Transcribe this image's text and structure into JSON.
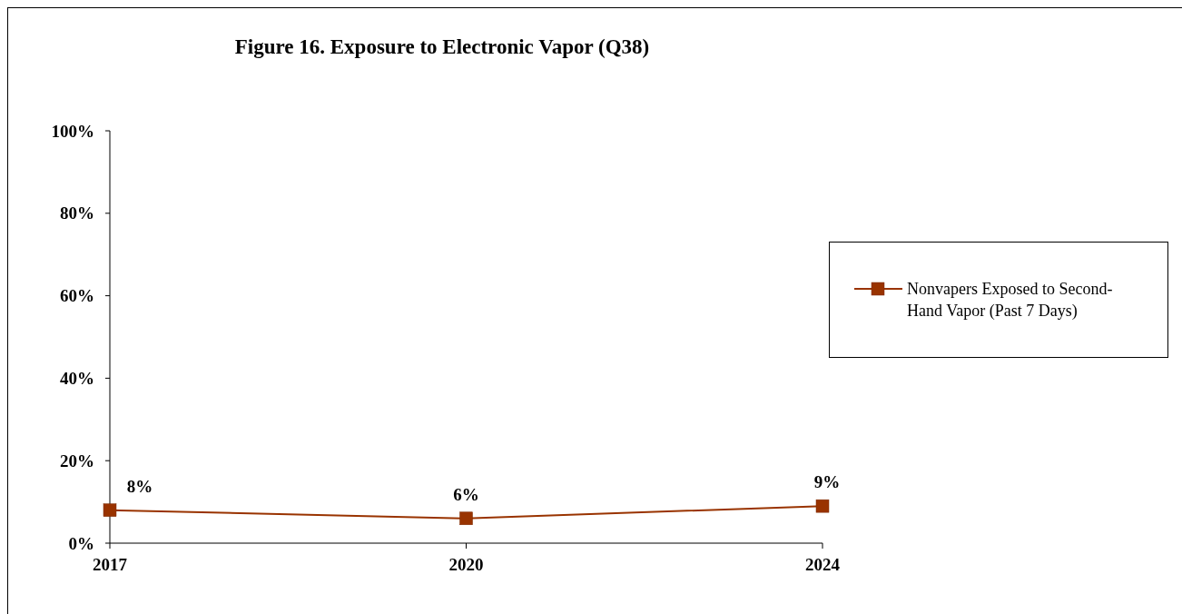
{
  "chart_data": {
    "type": "line",
    "title": "Figure 16. Exposure to Electronic Vapor (Q38)",
    "categories": [
      "2017",
      "2020",
      "2024"
    ],
    "series": [
      {
        "name": "Nonvapers Exposed to Second-Hand Vapor (Past 7 Days)",
        "color": "#993300",
        "values": [
          8,
          6,
          9
        ],
        "value_labels": [
          "8%",
          "6%",
          "9%"
        ]
      }
    ],
    "ylim": [
      0,
      100
    ],
    "yticks": [
      {
        "value": 0,
        "label": "0%"
      },
      {
        "value": 20,
        "label": "20%"
      },
      {
        "value": 40,
        "label": "40%"
      },
      {
        "value": 60,
        "label": "60%"
      },
      {
        "value": 80,
        "label": "80%"
      },
      {
        "value": 100,
        "label": "100%"
      }
    ],
    "marker": "square",
    "legend": "right",
    "grid": false
  }
}
